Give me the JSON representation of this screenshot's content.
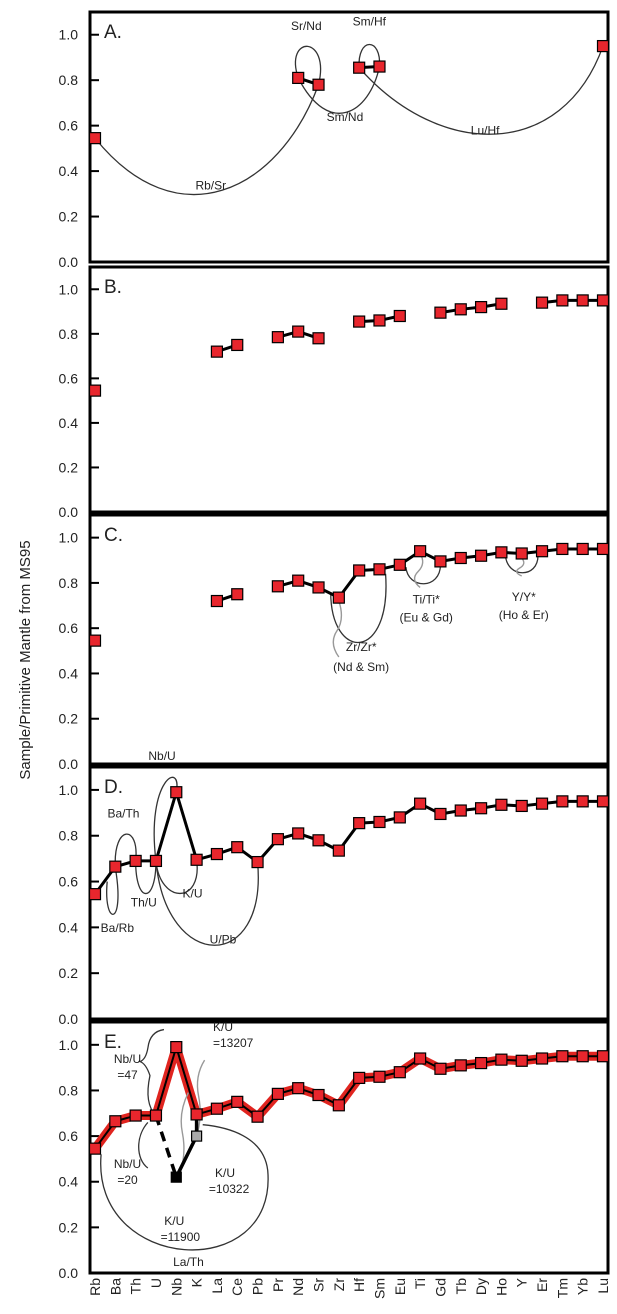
{
  "chart_data": {
    "type": "line",
    "ylabel": "Sample/Primitive Mantle from MS95",
    "ylim": [
      0,
      1.1
    ],
    "yticks": [
      0.0,
      0.2,
      0.4,
      0.6,
      0.8,
      1.0
    ],
    "ytick_labels": [
      "0.0",
      "0.2",
      "0.4",
      "0.6",
      "0.8",
      "1.0"
    ],
    "categories": [
      "Rb",
      "Ba",
      "Th",
      "U",
      "Nb",
      "K",
      "La",
      "Ce",
      "Pb",
      "Pr",
      "Nd",
      "Sr",
      "Zr",
      "Hf",
      "Sm",
      "Eu",
      "Ti",
      "Gd",
      "Tb",
      "Dy",
      "Ho",
      "Y",
      "Er",
      "Tm",
      "Yb",
      "Lu"
    ],
    "colors": {
      "marker": "#e8262d",
      "line": "#000000",
      "red_line": "#e0241f",
      "grey": "#999999"
    },
    "panels": [
      {
        "label": "A.",
        "points": [
          [
            0,
            0.545
          ],
          [
            10,
            0.81
          ],
          [
            11,
            0.78
          ],
          [
            13,
            0.855
          ],
          [
            14,
            0.86
          ],
          [
            25,
            0.95
          ]
        ],
        "segments": [
          [
            10,
            11
          ],
          [
            13,
            14
          ]
        ],
        "annotations": [
          "Sr/Nd",
          "Sm/Hf",
          "Sm/Nd",
          "Lu/Hf",
          "Rb/Sr"
        ]
      },
      {
        "label": "B.",
        "points": [
          [
            0,
            0.545
          ],
          [
            6,
            0.72
          ],
          [
            7,
            0.75
          ],
          [
            9,
            0.785
          ],
          [
            10,
            0.81
          ],
          [
            11,
            0.78
          ],
          [
            13,
            0.855
          ],
          [
            14,
            0.86
          ],
          [
            15,
            0.88
          ],
          [
            17,
            0.895
          ],
          [
            18,
            0.91
          ],
          [
            19,
            0.92
          ],
          [
            20,
            0.935
          ],
          [
            22,
            0.94
          ],
          [
            23,
            0.95
          ],
          [
            24,
            0.95
          ],
          [
            25,
            0.95
          ]
        ],
        "segments": [
          [
            6,
            7
          ],
          [
            9,
            10,
            11
          ],
          [
            13,
            14,
            15
          ],
          [
            17,
            18,
            19,
            20
          ],
          [
            22,
            23,
            24,
            25
          ]
        ],
        "annotations": []
      },
      {
        "label": "C.",
        "points": [
          [
            0,
            0.545
          ],
          [
            6,
            0.72
          ],
          [
            7,
            0.75
          ],
          [
            9,
            0.785
          ],
          [
            10,
            0.81
          ],
          [
            11,
            0.78
          ],
          [
            12,
            0.735
          ],
          [
            13,
            0.855
          ],
          [
            14,
            0.86
          ],
          [
            15,
            0.88
          ],
          [
            16,
            0.94
          ],
          [
            17,
            0.895
          ],
          [
            18,
            0.91
          ],
          [
            19,
            0.92
          ],
          [
            20,
            0.935
          ],
          [
            21,
            0.93
          ],
          [
            22,
            0.94
          ],
          [
            23,
            0.95
          ],
          [
            24,
            0.95
          ],
          [
            25,
            0.95
          ]
        ],
        "segments": [
          [
            6,
            7
          ],
          [
            9,
            10,
            11,
            12,
            13,
            14,
            15,
            16,
            17,
            18,
            19,
            20,
            21,
            22,
            23,
            24,
            25
          ]
        ],
        "annotations": [
          "Zr/Zr*",
          "(Nd & Sm)",
          "Ti/Ti*",
          "(Eu & Gd)",
          "Y/Y*",
          "(Ho & Er)"
        ]
      },
      {
        "label": "D.",
        "points": [
          [
            0,
            0.545
          ],
          [
            1,
            0.665
          ],
          [
            2,
            0.69
          ],
          [
            3,
            0.69
          ],
          [
            4,
            0.99
          ],
          [
            5,
            0.695
          ],
          [
            6,
            0.72
          ],
          [
            7,
            0.75
          ],
          [
            8,
            0.685
          ],
          [
            9,
            0.785
          ],
          [
            10,
            0.81
          ],
          [
            11,
            0.78
          ],
          [
            12,
            0.735
          ],
          [
            13,
            0.855
          ],
          [
            14,
            0.86
          ],
          [
            15,
            0.88
          ],
          [
            16,
            0.94
          ],
          [
            17,
            0.895
          ],
          [
            18,
            0.91
          ],
          [
            19,
            0.92
          ],
          [
            20,
            0.935
          ],
          [
            21,
            0.93
          ],
          [
            22,
            0.94
          ],
          [
            23,
            0.95
          ],
          [
            24,
            0.95
          ],
          [
            25,
            0.95
          ]
        ],
        "segments": [
          [
            0,
            1,
            2,
            3,
            4,
            5,
            6,
            7,
            8,
            9,
            10,
            11,
            12,
            13,
            14,
            15,
            16,
            17,
            18,
            19,
            20,
            21,
            22,
            23,
            24,
            25
          ]
        ],
        "annotations": [
          "Nb/U",
          "Ba/Th",
          "Th/U",
          "K/U",
          "Ba/Rb",
          "U/Pb"
        ]
      },
      {
        "label": "E.",
        "points": [
          [
            0,
            0.545
          ],
          [
            1,
            0.665
          ],
          [
            2,
            0.69
          ],
          [
            3,
            0.69
          ],
          [
            4,
            0.99
          ],
          [
            5,
            0.695
          ],
          [
            6,
            0.72
          ],
          [
            7,
            0.75
          ],
          [
            8,
            0.685
          ],
          [
            9,
            0.785
          ],
          [
            10,
            0.81
          ],
          [
            11,
            0.78
          ],
          [
            12,
            0.735
          ],
          [
            13,
            0.855
          ],
          [
            14,
            0.86
          ],
          [
            15,
            0.88
          ],
          [
            16,
            0.94
          ],
          [
            17,
            0.895
          ],
          [
            18,
            0.91
          ],
          [
            19,
            0.92
          ],
          [
            20,
            0.935
          ],
          [
            21,
            0.93
          ],
          [
            22,
            0.94
          ],
          [
            23,
            0.95
          ],
          [
            24,
            0.95
          ],
          [
            25,
            0.95
          ]
        ],
        "segments": [
          [
            0,
            1,
            2,
            3,
            4,
            5,
            6,
            7,
            8,
            9,
            10,
            11,
            12,
            13,
            14,
            15,
            16,
            17,
            18,
            19,
            20,
            21,
            22,
            23,
            24,
            25
          ]
        ],
        "extra_points": [
          [
            4,
            0.42
          ],
          [
            5,
            0.6
          ]
        ],
        "annotations": [
          "K/U",
          "=13207",
          "Nb/U",
          "=47",
          "Nb/U",
          "=20",
          "K/U",
          "=11900",
          "K/U",
          "=10322",
          "La/Th"
        ]
      }
    ]
  }
}
